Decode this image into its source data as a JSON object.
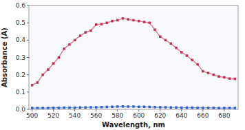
{
  "chart_data": {
    "type": "line",
    "xlabel": "Wavelength, nm",
    "ylabel": "Absorbance (A)",
    "x": [
      500,
      505,
      510,
      515,
      520,
      525,
      530,
      535,
      540,
      545,
      550,
      555,
      560,
      565,
      570,
      575,
      580,
      585,
      590,
      595,
      600,
      605,
      610,
      615,
      620,
      625,
      630,
      635,
      640,
      645,
      650,
      655,
      660,
      665,
      670,
      675,
      680,
      685,
      690
    ],
    "series": [
      {
        "color": "#c03050",
        "marker": "square",
        "values": [
          0.14,
          0.155,
          0.2,
          0.23,
          0.265,
          0.3,
          0.35,
          0.375,
          0.4,
          0.425,
          0.445,
          0.455,
          0.49,
          0.492,
          0.5,
          0.51,
          0.515,
          0.525,
          0.52,
          0.515,
          0.51,
          0.505,
          0.5,
          0.46,
          0.42,
          0.4,
          0.38,
          0.355,
          0.33,
          0.31,
          0.285,
          0.26,
          0.22,
          0.21,
          0.2,
          0.19,
          0.185,
          0.178,
          0.176
        ]
      },
      {
        "color": "#3060c0",
        "marker": "square",
        "values": [
          0.008,
          0.008,
          0.008,
          0.008,
          0.009,
          0.009,
          0.01,
          0.01,
          0.01,
          0.011,
          0.011,
          0.012,
          0.012,
          0.013,
          0.014,
          0.015,
          0.016,
          0.017,
          0.016,
          0.016,
          0.015,
          0.015,
          0.014,
          0.013,
          0.012,
          0.012,
          0.011,
          0.011,
          0.01,
          0.01,
          0.01,
          0.009,
          0.009,
          0.009,
          0.009,
          0.008,
          0.008,
          0.008,
          0.008
        ]
      }
    ],
    "xlim": [
      497,
      693
    ],
    "ylim": [
      0,
      0.6
    ],
    "xticks": [
      500,
      520,
      540,
      560,
      580,
      600,
      620,
      640,
      660,
      680
    ],
    "yticks": [
      {
        "value": 0,
        "label": "0.0"
      },
      0.1,
      0.2,
      0.3,
      0.4,
      0.5,
      0.6
    ],
    "grid": false
  }
}
